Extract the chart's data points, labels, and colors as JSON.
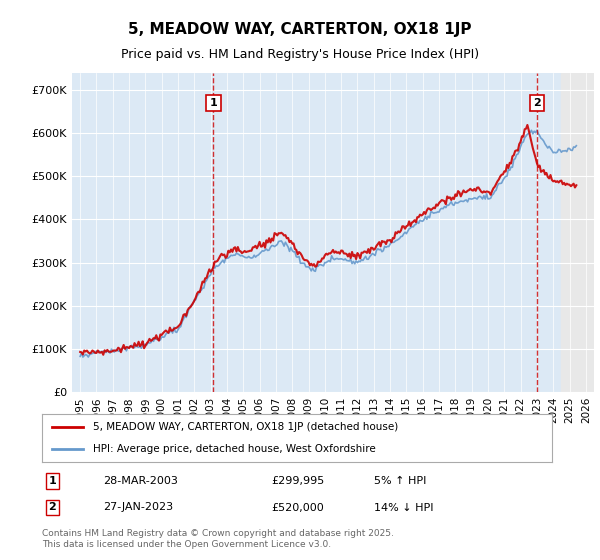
{
  "title": "5, MEADOW WAY, CARTERTON, OX18 1JP",
  "subtitle": "Price paid vs. HM Land Registry's House Price Index (HPI)",
  "legend_line1": "5, MEADOW WAY, CARTERTON, OX18 1JP (detached house)",
  "legend_line2": "HPI: Average price, detached house, West Oxfordshire",
  "sale1_date": "28-MAR-2003",
  "sale1_price": 299995,
  "sale1_label": "1",
  "sale1_hpi": "5% ↑ HPI",
  "sale2_date": "27-JAN-2023",
  "sale2_price": 520000,
  "sale2_label": "2",
  "sale2_hpi": "14% ↓ HPI",
  "footnote": "Contains HM Land Registry data © Crown copyright and database right 2025.\nThis data is licensed under the Open Government Licence v3.0.",
  "hpi_color": "#6699cc",
  "price_color": "#cc0000",
  "bg_plot": "#dce9f5",
  "bg_future": "#e8e8e8",
  "grid_color": "#ffffff",
  "yticks": [
    0,
    100000,
    200000,
    300000,
    400000,
    500000,
    600000,
    700000
  ],
  "ylim": [
    0,
    740000
  ],
  "xlabel_start_year": 1995,
  "xlabel_end_year": 2026
}
